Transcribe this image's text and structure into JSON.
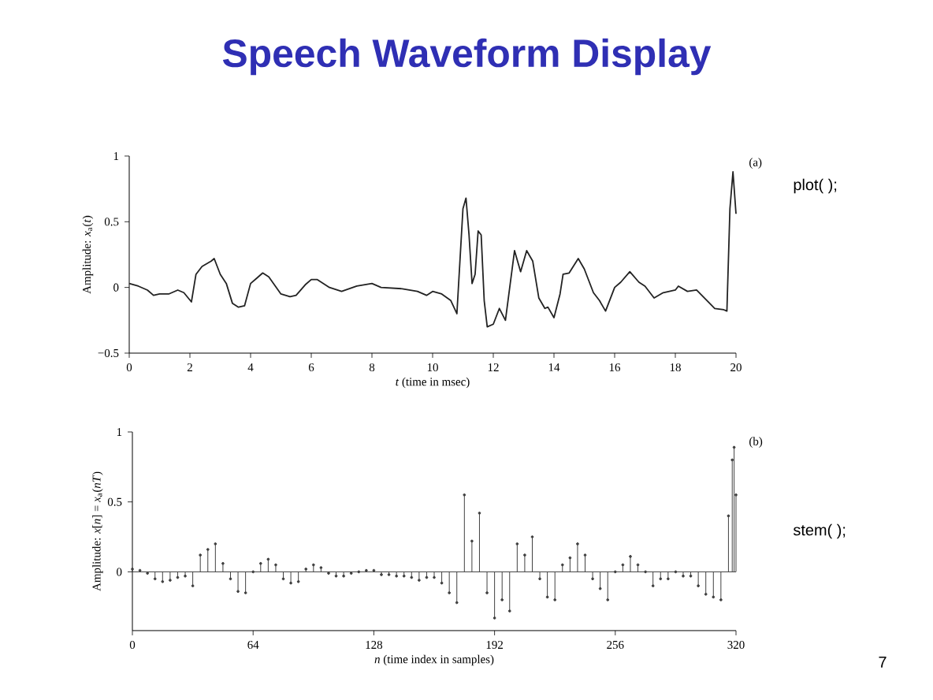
{
  "chart_data": [
    {
      "type": "line",
      "title": "Speech Waveform Display",
      "xlabel": "*t* (time in msec)",
      "ylabel": "Amplitude: *x*$_{a}$(*t*)",
      "xlim": [
        0,
        20
      ],
      "ylim": [
        -0.5,
        1
      ],
      "xticks": [
        0,
        2,
        4,
        6,
        8,
        10,
        12,
        14,
        16,
        18,
        20
      ],
      "yticks": [
        {
          "value": -0.5,
          "label": "−0.5"
        },
        0,
        0.5,
        1
      ],
      "series": [
        {
          "color": "#222222",
          "x": [
            0,
            0.3,
            0.6,
            0.8,
            1.0,
            1.3,
            1.6,
            1.8,
            2.05,
            2.2,
            2.4,
            2.7,
            2.8,
            3.0,
            3.2,
            3.4,
            3.6,
            3.8,
            4.0,
            4.2,
            4.4,
            4.6,
            5.0,
            5.3,
            5.5,
            5.8,
            6.0,
            6.2,
            6.6,
            7.0,
            7.5,
            8.0,
            8.3,
            9.0,
            9.5,
            9.8,
            10.0,
            10.3,
            10.6,
            10.8,
            11.0,
            11.1,
            11.2,
            11.3,
            11.4,
            11.5,
            11.6,
            11.7,
            11.8,
            12.0,
            12.2,
            12.4,
            12.7,
            12.9,
            13.1,
            13.3,
            13.5,
            13.7,
            13.8,
            14.0,
            14.2,
            14.3,
            14.5,
            14.8,
            15.0,
            15.3,
            15.5,
            15.7,
            16.0,
            16.2,
            16.5,
            16.8,
            17.0,
            17.3,
            17.6,
            18.0,
            18.1,
            18.4,
            18.7,
            19.0,
            19.3,
            19.6,
            19.7,
            19.8,
            19.9,
            20.0
          ],
          "values": [
            0.03,
            0.01,
            -0.02,
            -0.06,
            -0.05,
            -0.05,
            -0.02,
            -0.04,
            -0.11,
            0.1,
            0.16,
            0.2,
            0.22,
            0.1,
            0.03,
            -0.12,
            -0.15,
            -0.14,
            0.03,
            0.07,
            0.11,
            0.08,
            -0.05,
            -0.07,
            -0.06,
            0.02,
            0.06,
            0.06,
            0.0,
            -0.03,
            0.01,
            0.03,
            0.0,
            -0.01,
            -0.03,
            -0.06,
            -0.03,
            -0.05,
            -0.1,
            -0.2,
            0.6,
            0.68,
            0.4,
            0.03,
            0.1,
            0.43,
            0.4,
            -0.1,
            -0.3,
            -0.28,
            -0.16,
            -0.25,
            0.28,
            0.12,
            0.28,
            0.2,
            -0.08,
            -0.16,
            -0.15,
            -0.23,
            -0.05,
            0.1,
            0.11,
            0.22,
            0.14,
            -0.04,
            -0.1,
            -0.18,
            0.0,
            0.04,
            0.12,
            0.04,
            0.01,
            -0.08,
            -0.04,
            -0.02,
            0.01,
            -0.03,
            -0.02,
            -0.09,
            -0.16,
            -0.17,
            -0.18,
            0.6,
            0.88,
            0.56
          ]
        }
      ],
      "annotations": [
        "(a)",
        "plot( );"
      ]
    },
    {
      "type": "lollipop",
      "xlabel": "*n* (time index in samples)",
      "ylabel": "Amplitude: *x*[*n*] = *x*$_{a}$(*nT*)",
      "xlim": [
        0,
        320
      ],
      "ylim": [
        -0.42,
        1
      ],
      "xticks": [
        0,
        64,
        128,
        192,
        256,
        320
      ],
      "yticks": [
        0,
        0.5,
        1
      ],
      "marker": "circle",
      "series": [
        {
          "color": "#404040",
          "x": [
            0,
            4,
            8,
            12,
            16,
            20,
            24,
            28,
            32,
            36,
            40,
            44,
            48,
            52,
            56,
            60,
            64,
            68,
            72,
            76,
            80,
            84,
            88,
            92,
            96,
            100,
            104,
            108,
            112,
            116,
            120,
            124,
            128,
            132,
            136,
            140,
            144,
            148,
            152,
            156,
            160,
            164,
            168,
            172,
            176,
            180,
            184,
            188,
            192,
            196,
            200,
            204,
            208,
            212,
            216,
            220,
            224,
            228,
            232,
            236,
            240,
            244,
            248,
            252,
            256,
            260,
            264,
            268,
            272,
            276,
            280,
            284,
            288,
            292,
            296,
            300,
            304,
            308,
            312,
            316,
            318,
            319,
            320
          ],
          "values": [
            0.02,
            0.01,
            -0.01,
            -0.05,
            -0.07,
            -0.06,
            -0.04,
            -0.03,
            -0.1,
            0.12,
            0.16,
            0.2,
            0.06,
            -0.05,
            -0.14,
            -0.15,
            0.0,
            0.06,
            0.09,
            0.05,
            -0.05,
            -0.08,
            -0.07,
            0.02,
            0.05,
            0.03,
            -0.01,
            -0.03,
            -0.03,
            -0.01,
            0.0,
            0.01,
            0.01,
            -0.02,
            -0.02,
            -0.03,
            -0.03,
            -0.04,
            -0.06,
            -0.04,
            -0.04,
            -0.08,
            -0.15,
            -0.22,
            0.55,
            0.22,
            0.42,
            -0.15,
            -0.33,
            -0.2,
            -0.28,
            0.2,
            0.12,
            0.25,
            -0.05,
            -0.18,
            -0.2,
            0.05,
            0.1,
            0.2,
            0.12,
            -0.05,
            -0.12,
            -0.2,
            0.0,
            0.05,
            0.11,
            0.05,
            0.0,
            -0.1,
            -0.05,
            -0.05,
            0.0,
            -0.03,
            -0.03,
            -0.1,
            -0.16,
            -0.18,
            -0.2,
            0.4,
            0.8,
            0.89,
            0.55
          ]
        }
      ],
      "annotations": [
        "(b)",
        "stem( );",
        "7"
      ]
    }
  ]
}
